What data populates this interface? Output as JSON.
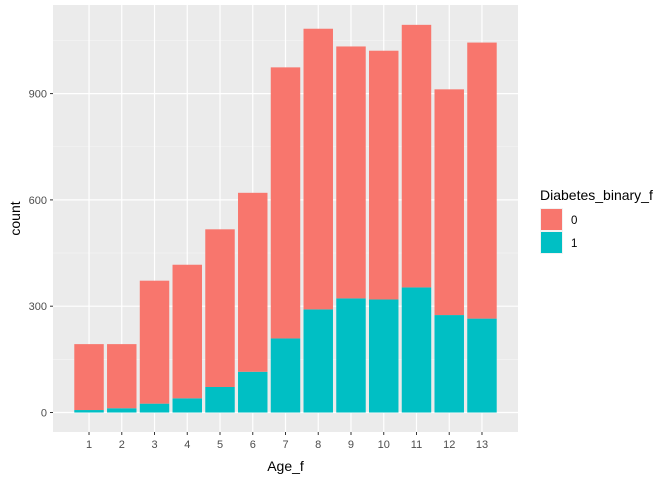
{
  "chart_data": {
    "type": "bar",
    "stacked": true,
    "categories": [
      "1",
      "2",
      "3",
      "4",
      "5",
      "6",
      "7",
      "8",
      "9",
      "10",
      "11",
      "12",
      "13"
    ],
    "series": [
      {
        "name": "0",
        "color": "#F8766D",
        "values": [
          186,
          181,
          347,
          377,
          445,
          505,
          765,
          792,
          711,
          702,
          741,
          637,
          779
        ]
      },
      {
        "name": "1",
        "color": "#00BFC4",
        "values": [
          7,
          12,
          25,
          40,
          72,
          115,
          209,
          291,
          322,
          319,
          353,
          275,
          265
        ]
      }
    ],
    "xlabel": "Age_f",
    "ylabel": "count",
    "yticks": [
      0,
      300,
      600,
      900
    ],
    "ylim": [
      -55,
      1150
    ],
    "grid": true,
    "legend": {
      "title": "Diabetes_binary_f",
      "position": "right"
    }
  }
}
